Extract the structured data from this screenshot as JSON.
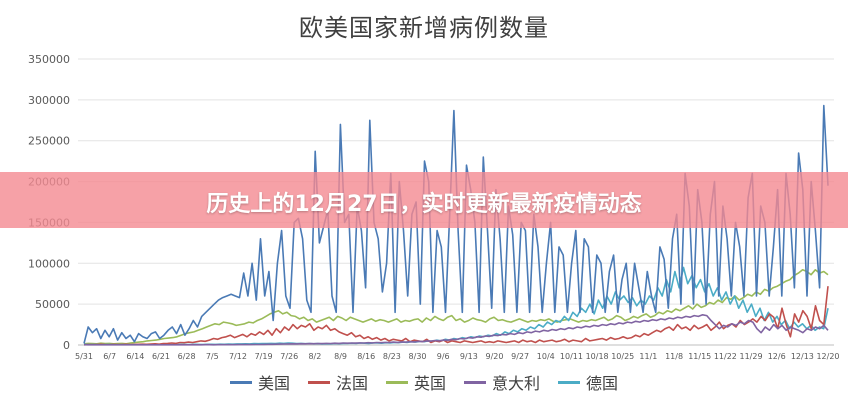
{
  "overlay": {
    "banner_text": "历史上的12月27日，实时更新最新疫情动态"
  },
  "chart_data": {
    "type": "line",
    "title": "欧美国家新增病例数量",
    "xlabel": "",
    "ylabel": "",
    "ylim": [
      0,
      350000
    ],
    "y_ticks": [
      "0",
      "50000",
      "100000",
      "150000",
      "200000",
      "250000",
      "300000",
      "350000"
    ],
    "x_ticks": [
      "5/31",
      "6/7",
      "6/14",
      "6/21",
      "6/28",
      "7/5",
      "7/12",
      "7/19",
      "7/26",
      "8/2",
      "8/9",
      "8/16",
      "8/23",
      "8/30",
      "9/6",
      "9/13",
      "9/20",
      "9/27",
      "10/4",
      "10/11",
      "10/18",
      "10/25",
      "11/1",
      "11/8",
      "11/15",
      "11/22",
      "11/29",
      "12/6",
      "12/13",
      "12/20"
    ],
    "grid": true,
    "legend_position": "bottom",
    "series": [
      {
        "name": "美国",
        "color": "#4a7ab5",
        "values": [
          2000,
          22000,
          15000,
          20000,
          8000,
          18000,
          10000,
          20000,
          6000,
          15000,
          8000,
          12000,
          4000,
          14000,
          10000,
          8000,
          14000,
          16000,
          8000,
          12000,
          18000,
          22000,
          14000,
          25000,
          12000,
          20000,
          30000,
          22000,
          35000,
          40000,
          45000,
          50000,
          55000,
          58000,
          60000,
          62000,
          60000,
          58000,
          88000,
          60000,
          100000,
          55000,
          130000,
          60000,
          90000,
          30000,
          100000,
          140000,
          60000,
          45000,
          150000,
          155000,
          130000,
          55000,
          40000,
          237000,
          125000,
          145000,
          165000,
          60000,
          40000,
          270000,
          150000,
          160000,
          40000,
          170000,
          140000,
          70000,
          275000,
          150000,
          130000,
          65000,
          100000,
          210000,
          40000,
          200000,
          140000,
          60000,
          160000,
          175000,
          50000,
          225000,
          200000,
          40000,
          140000,
          120000,
          40000,
          160000,
          287000,
          140000,
          40000,
          220000,
          190000,
          150000,
          40000,
          230000,
          140000,
          45000,
          190000,
          130000,
          40000,
          170000,
          135000,
          40000,
          150000,
          140000,
          40000,
          160000,
          120000,
          40000,
          100000,
          150000,
          40000,
          120000,
          110000,
          40000,
          100000,
          140000,
          40000,
          130000,
          120000,
          40000,
          110000,
          100000,
          40000,
          90000,
          110000,
          40000,
          80000,
          100000,
          40000,
          100000,
          70000,
          40000,
          90000,
          60000,
          40000,
          120000,
          105000,
          45000,
          130000,
          160000,
          50000,
          210000,
          170000,
          50000,
          190000,
          150000,
          50000,
          160000,
          200000,
          60000,
          170000,
          130000,
          60000,
          150000,
          120000,
          60000,
          180000,
          210000,
          60000,
          170000,
          150000,
          60000,
          120000,
          190000,
          60000,
          210000,
          160000,
          70000,
          235000,
          190000,
          60000,
          200000,
          140000,
          70000,
          293000,
          195000
        ],
        "units_note": ""
      },
      {
        "name": "法国",
        "color": "#c0504d",
        "values": [
          300,
          500,
          400,
          600,
          800,
          500,
          400,
          700,
          600,
          500,
          800,
          600,
          700,
          900,
          1000,
          800,
          1200,
          1500,
          1000,
          1800,
          2000,
          2500,
          2000,
          3000,
          2800,
          3500,
          3000,
          4000,
          5000,
          4500,
          6000,
          8000,
          7000,
          9000,
          10000,
          12000,
          9000,
          11000,
          13000,
          10000,
          14000,
          12000,
          16000,
          13000,
          18000,
          12000,
          20000,
          15000,
          22000,
          18000,
          25000,
          20000,
          24000,
          22000,
          26000,
          18000,
          22000,
          20000,
          24000,
          18000,
          20000,
          16000,
          14000,
          12000,
          15000,
          10000,
          12000,
          8000,
          10000,
          7000,
          9000,
          6000,
          8000,
          5000,
          7000,
          6000,
          5000,
          8000,
          4000,
          6000,
          5000,
          4000,
          7000,
          3000,
          5000,
          4000,
          6000,
          3000,
          5000,
          4000,
          3000,
          5000,
          4000,
          3000,
          4000,
          5000,
          3000,
          4000,
          3000,
          5000,
          4000,
          3000,
          4000,
          5000,
          3000,
          6000,
          4000,
          5000,
          3000,
          6000,
          4000,
          5000,
          6000,
          4000,
          5000,
          7000,
          4000,
          6000,
          5000,
          4000,
          8000,
          5000,
          6000,
          7000,
          8000,
          6000,
          9000,
          7000,
          8000,
          10000,
          8000,
          9000,
          12000,
          10000,
          14000,
          12000,
          15000,
          18000,
          16000,
          20000,
          22000,
          18000,
          25000,
          20000,
          22000,
          18000,
          24000,
          20000,
          22000,
          25000,
          18000,
          22000,
          28000,
          20000,
          24000,
          26000,
          22000,
          30000,
          25000,
          28000,
          32000,
          28000,
          35000,
          30000,
          38000,
          34000,
          20000,
          45000,
          25000,
          10000,
          38000,
          28000,
          42000,
          35000,
          20000,
          48000,
          30000,
          25000,
          72000
        ],
        "units_note": ""
      },
      {
        "name": "英国",
        "color": "#9bbb59",
        "values": [
          1500,
          2000,
          1800,
          1500,
          2200,
          1800,
          2000,
          1500,
          1800,
          2000,
          1500,
          2500,
          3000,
          3500,
          4000,
          5000,
          5500,
          6000,
          7000,
          8000,
          8500,
          9000,
          10000,
          12000,
          14000,
          15000,
          16000,
          18000,
          20000,
          22000,
          24000,
          26000,
          25000,
          28000,
          27000,
          26000,
          24000,
          25000,
          26000,
          28000,
          27000,
          30000,
          32000,
          35000,
          38000,
          40000,
          42000,
          38000,
          40000,
          36000,
          35000,
          32000,
          34000,
          30000,
          32000,
          28000,
          30000,
          32000,
          34000,
          30000,
          35000,
          33000,
          30000,
          34000,
          32000,
          30000,
          28000,
          30000,
          32000,
          29000,
          31000,
          30000,
          28000,
          30000,
          32000,
          28000,
          30000,
          29000,
          31000,
          32000,
          28000,
          33000,
          30000,
          35000,
          32000,
          30000,
          34000,
          36000,
          30000,
          32000,
          28000,
          30000,
          33000,
          31000,
          30000,
          28000,
          32000,
          34000,
          30000,
          31000,
          29000,
          28000,
          30000,
          32000,
          30000,
          28000,
          30000,
          29000,
          31000,
          30000,
          32000,
          29000,
          28000,
          30000,
          31000,
          32000,
          30000,
          28000,
          30000,
          29000,
          31000,
          30000,
          32000,
          34000,
          30000,
          32000,
          36000,
          34000,
          30000,
          32000,
          35000,
          33000,
          36000,
          38000,
          34000,
          36000,
          40000,
          38000,
          42000,
          40000,
          44000,
          42000,
          45000,
          48000,
          44000,
          50000,
          46000,
          48000,
          52000,
          50000,
          55000,
          52000,
          58000,
          56000,
          60000,
          55000,
          58000,
          62000,
          60000,
          65000,
          62000,
          68000,
          66000,
          70000,
          72000,
          75000,
          78000,
          80000,
          85000,
          88000,
          92000,
          90000,
          86000,
          92000,
          88000,
          90000,
          86000
        ],
        "units_note": ""
      },
      {
        "name": "意大利",
        "color": "#8064a2",
        "values": [
          400,
          300,
          350,
          300,
          250,
          300,
          280,
          250,
          260,
          300,
          250,
          280,
          300,
          260,
          250,
          280,
          300,
          260,
          280,
          300,
          250,
          280,
          260,
          300,
          280,
          300,
          320,
          280,
          300,
          320,
          350,
          300,
          380,
          400,
          350,
          420,
          400,
          450,
          480,
          500,
          550,
          600,
          650,
          700,
          800,
          900,
          1000,
          1100,
          1200,
          1300,
          1500,
          1400,
          1600,
          1500,
          1700,
          1600,
          1800,
          1700,
          2000,
          1800,
          2200,
          2000,
          2400,
          2200,
          2500,
          2300,
          2600,
          2500,
          2800,
          2600,
          3000,
          2800,
          3200,
          3000,
          3500,
          3200,
          3800,
          3500,
          4000,
          3800,
          4500,
          4200,
          5000,
          4800,
          5500,
          5200,
          6000,
          5800,
          7000,
          6500,
          8000,
          7500,
          9000,
          8500,
          10000,
          9500,
          11000,
          10500,
          12000,
          11500,
          13000,
          12500,
          14000,
          13000,
          15000,
          14000,
          16000,
          15000,
          17000,
          16000,
          18000,
          17000,
          19000,
          18000,
          20000,
          19000,
          21000,
          20000,
          22000,
          21000,
          23000,
          22000,
          24000,
          23000,
          25000,
          24000,
          26000,
          25000,
          27000,
          26000,
          28000,
          27000,
          29000,
          28000,
          30000,
          29000,
          31000,
          30000,
          32000,
          31000,
          33000,
          32000,
          34000,
          33000,
          35000,
          34000,
          36000,
          35000,
          37000,
          36000,
          30000,
          25000,
          20000,
          24000,
          22000,
          26000,
          24000,
          28000,
          26000,
          30000,
          28000,
          20000,
          15000,
          22000,
          18000,
          25000,
          20000,
          24000,
          18000,
          22000,
          20000,
          18000,
          15000,
          20000,
          18000,
          22000,
          20000,
          24000,
          18000
        ],
        "units_note": ""
      },
      {
        "name": "德国",
        "color": "#4bacc6",
        "values": [
          800,
          700,
          600,
          700,
          500,
          600,
          700,
          500,
          400,
          600,
          500,
          400,
          500,
          600,
          400,
          500,
          450,
          400,
          500,
          600,
          400,
          500,
          600,
          700,
          500,
          600,
          800,
          700,
          600,
          900,
          800,
          700,
          1000,
          900,
          1200,
          1000,
          1400,
          1300,
          1500,
          1400,
          1700,
          1600,
          1800,
          1700,
          2000,
          1800,
          2200,
          2000,
          2400,
          2200,
          1800,
          2000,
          1600,
          1800,
          1500,
          1700,
          1400,
          1600,
          1500,
          1800,
          1600,
          2000,
          1800,
          2200,
          2000,
          2400,
          2200,
          2000,
          2600,
          2400,
          2200,
          2800,
          2500,
          3000,
          2800,
          3500,
          3000,
          4000,
          3500,
          4500,
          4000,
          5000,
          4500,
          6000,
          5000,
          7000,
          6000,
          8000,
          7000,
          9000,
          8000,
          10000,
          9000,
          11000,
          10000,
          12000,
          11000,
          14000,
          12000,
          16000,
          14000,
          18000,
          16000,
          20000,
          18000,
          22000,
          20000,
          25000,
          22000,
          28000,
          25000,
          30000,
          28000,
          35000,
          30000,
          40000,
          35000,
          45000,
          40000,
          50000,
          38000,
          55000,
          45000,
          60000,
          50000,
          65000,
          55000,
          60000,
          52000,
          58000,
          48000,
          55000,
          50000,
          60000,
          55000,
          70000,
          60000,
          80000,
          65000,
          90000,
          70000,
          95000,
          75000,
          85000,
          70000,
          80000,
          65000,
          75000,
          60000,
          70000,
          55000,
          65000,
          50000,
          60000,
          45000,
          55000,
          40000,
          50000,
          35000,
          45000,
          30000,
          40000,
          28000,
          35000,
          25000,
          30000,
          20000,
          28000,
          22000,
          26000,
          20000,
          24000,
          18000,
          22000,
          20000,
          45000
        ],
        "units_note": ""
      }
    ]
  }
}
